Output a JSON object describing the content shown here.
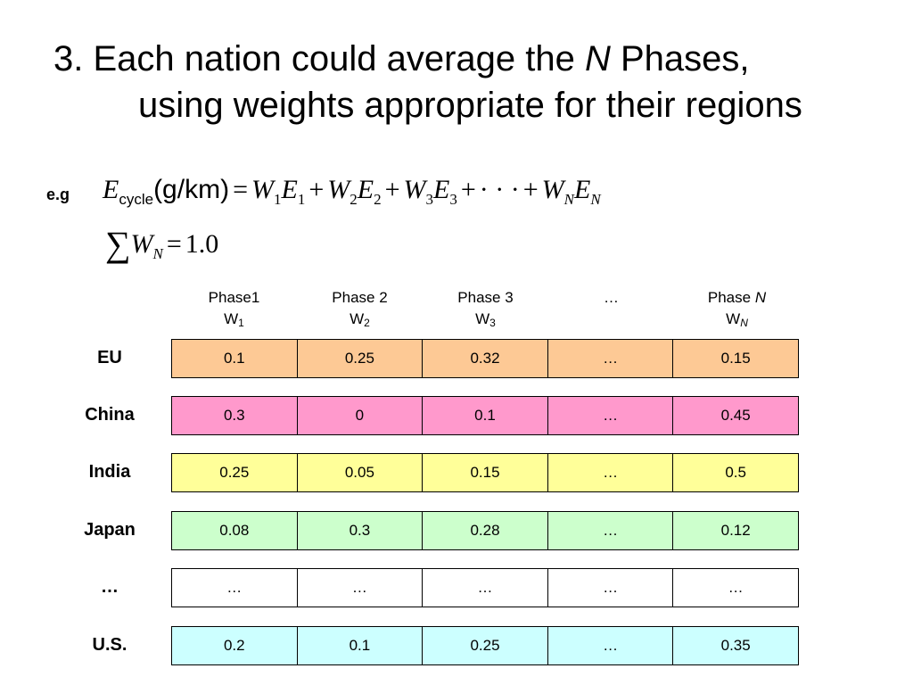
{
  "title": {
    "prefix": "3. Each nation could average the ",
    "var": "N",
    "suffix": " Phases,",
    "line2": "using weights appropriate for their regions"
  },
  "equation": {
    "eg_label": "e.g",
    "lhs_var": "E",
    "lhs_sub": "cycle",
    "lhs_units": "(g/km)",
    "eq": "=",
    "terms": [
      {
        "w": "W",
        "wsub": "1",
        "e": "E",
        "esub": "1"
      },
      {
        "w": "W",
        "wsub": "2",
        "e": "E",
        "esub": "2"
      },
      {
        "w": "W",
        "wsub": "3",
        "e": "E",
        "esub": "3"
      }
    ],
    "plus": "+",
    "dots": "· · ·",
    "last": {
      "w": "W",
      "wsub": "N",
      "e": "E",
      "esub": "N"
    },
    "sum_symbol": "∑",
    "sum_var": "W",
    "sum_sub": "N",
    "sum_eq": "=",
    "sum_value": "1.0"
  },
  "table": {
    "headers": [
      {
        "line1": "Phase1",
        "w": "W",
        "sub": "1"
      },
      {
        "line1": "Phase 2",
        "w": "W",
        "sub": "2"
      },
      {
        "line1": "Phase 3",
        "w": "W",
        "sub": "3"
      },
      {
        "line1": "…",
        "w": "",
        "sub": ""
      },
      {
        "line1": "Phase ",
        "line1_var": "N",
        "w": "W",
        "sub": "N"
      }
    ],
    "rows": [
      {
        "label": "EU",
        "color": "#fdc995",
        "values": [
          "0.1",
          "0.25",
          "0.32",
          "…",
          "0.15"
        ]
      },
      {
        "label": "China",
        "color": "#ff99cc",
        "values": [
          "0.3",
          "0",
          "0.1",
          "…",
          "0.45"
        ]
      },
      {
        "label": "India",
        "color": "#ffff99",
        "values": [
          "0.25",
          "0.05",
          "0.15",
          "…",
          "0.5"
        ]
      },
      {
        "label": "Japan",
        "color": "#ccffcc",
        "values": [
          "0.08",
          "0.3",
          "0.28",
          "…",
          "0.12"
        ]
      },
      {
        "label": "…",
        "color": "#ffffff",
        "values": [
          "…",
          "…",
          "…",
          "…",
          "…"
        ]
      },
      {
        "label": "U.S.",
        "color": "#ccffff",
        "values": [
          "0.2",
          "0.1",
          "0.25",
          "…",
          "0.35"
        ]
      }
    ]
  }
}
